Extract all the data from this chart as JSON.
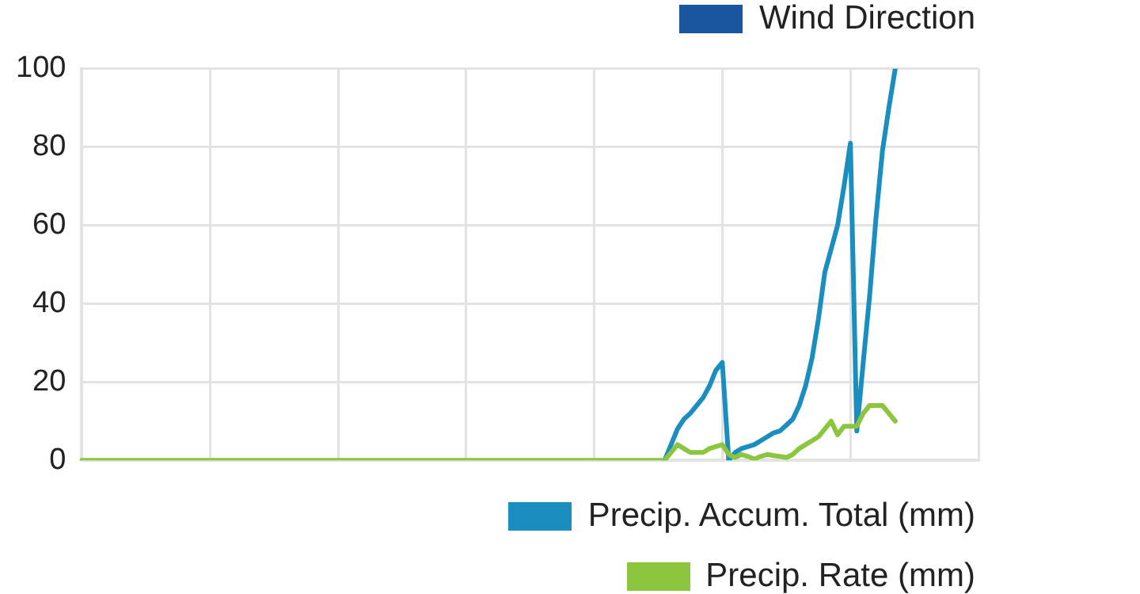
{
  "chart_data": {
    "type": "line",
    "categories": [
      null,
      null,
      null,
      null,
      null,
      null,
      null,
      null,
      null,
      null,
      null,
      null,
      null,
      null,
      null,
      null,
      null,
      null,
      null,
      null,
      null,
      null,
      null,
      null,
      null,
      null,
      null,
      null,
      null,
      null,
      null,
      null,
      null,
      null,
      null,
      null,
      null,
      null,
      null,
      null,
      null,
      null,
      null,
      null,
      null,
      null,
      null,
      null,
      null,
      null,
      null,
      null,
      null,
      null,
      null,
      null,
      null,
      null,
      null,
      null,
      null,
      null,
      null,
      null,
      null,
      null,
      null,
      null,
      null,
      null,
      null,
      null,
      null,
      null,
      null,
      null,
      null,
      null,
      null,
      null,
      null,
      null,
      null,
      null,
      null,
      null,
      null,
      null,
      null,
      null,
      null,
      null,
      null,
      null,
      null,
      null,
      null,
      null,
      null,
      null,
      null,
      null,
      null,
      null,
      null,
      null,
      null,
      null,
      null,
      null,
      null,
      null,
      null,
      null,
      null,
      null,
      null,
      null,
      null,
      null,
      null,
      null,
      null,
      null,
      null,
      null,
      null,
      null,
      null,
      null,
      null,
      null,
      null,
      null,
      null,
      null,
      null,
      null,
      null,
      null,
      null
    ],
    "ylim": [
      0,
      100
    ],
    "yticks": [
      0,
      20,
      40,
      60,
      80,
      100
    ],
    "grid": true,
    "legend": "bottom right",
    "tick_labels": "y",
    "marker": "none",
    "line_style": "solid",
    "series": [
      {
        "name": "Wind Direction",
        "color": "#1a56a0",
        "values": [
          null,
          null,
          null,
          null,
          null,
          null,
          null,
          null,
          null,
          null,
          null,
          null,
          null,
          null,
          null,
          null,
          null,
          null,
          null,
          null,
          null,
          null,
          null,
          null,
          null,
          null,
          null,
          null,
          null,
          null,
          null,
          null,
          null,
          null,
          null,
          null,
          null,
          null,
          null,
          null,
          null,
          null,
          null,
          null,
          null,
          null,
          null,
          null,
          null,
          null,
          null,
          null,
          null,
          null,
          null,
          null,
          null,
          null,
          null,
          null,
          null,
          null,
          null,
          null,
          null,
          null,
          null,
          null,
          null,
          null,
          null,
          null,
          null,
          null,
          null,
          null,
          null,
          null,
          null,
          null,
          null,
          null,
          null,
          null,
          null,
          null,
          null,
          null,
          null,
          null,
          null,
          null,
          null,
          null,
          null,
          null,
          null,
          null,
          null,
          null,
          null,
          null,
          null,
          null,
          null,
          null,
          null,
          null,
          null,
          null,
          null,
          null,
          null,
          null,
          null,
          null,
          null,
          null,
          null,
          null,
          null,
          null,
          null,
          null,
          null,
          null,
          null,
          null,
          null,
          null,
          null,
          null,
          null,
          null,
          null,
          null,
          null,
          null,
          null,
          null,
          null
        ]
      },
      {
        "name": "Precip. Accum. Total (mm)",
        "color": "#1a8fbf",
        "values": [
          null,
          null,
          null,
          null,
          null,
          null,
          null,
          null,
          null,
          null,
          null,
          null,
          null,
          null,
          null,
          null,
          null,
          null,
          null,
          null,
          null,
          null,
          null,
          null,
          null,
          null,
          null,
          null,
          null,
          null,
          null,
          null,
          null,
          null,
          null,
          null,
          null,
          null,
          null,
          null,
          null,
          null,
          null,
          null,
          null,
          null,
          null,
          null,
          null,
          null,
          null,
          null,
          null,
          null,
          null,
          null,
          null,
          null,
          null,
          null,
          null,
          null,
          null,
          null,
          null,
          null,
          null,
          null,
          null,
          null,
          null,
          null,
          null,
          null,
          null,
          null,
          null,
          null,
          null,
          null,
          null,
          null,
          null,
          null,
          null,
          null,
          null,
          null,
          null,
          null,
          null,
          0,
          4,
          8,
          10.5,
          12,
          14,
          16,
          19,
          23,
          25,
          0,
          2,
          3,
          3.5,
          4,
          5,
          6,
          7,
          7.5,
          9,
          10.5,
          14,
          19,
          26,
          36,
          48,
          54,
          60,
          70,
          81,
          7.5,
          25,
          42,
          62,
          79,
          90,
          100,
          null,
          null,
          null,
          null,
          null,
          null,
          null,
          null,
          null,
          null,
          null,
          null,
          null
        ]
      },
      {
        "name": "Precip. Rate (mm)",
        "color": "#8cc63f",
        "values": [
          0,
          0,
          0,
          0,
          0,
          0,
          0,
          0,
          0,
          0,
          0,
          0,
          0,
          0,
          0,
          0,
          0,
          0,
          0,
          0,
          0,
          0,
          0,
          0,
          0,
          0,
          0,
          0,
          0,
          0,
          0,
          0,
          0,
          0,
          0,
          0,
          0,
          0,
          0,
          0,
          0,
          0,
          0,
          0,
          0,
          0,
          0,
          0,
          0,
          0,
          0,
          0,
          0,
          0,
          0,
          0,
          0,
          0,
          0,
          0,
          0,
          0,
          0,
          0,
          0,
          0,
          0,
          0,
          0,
          0,
          0,
          0,
          0,
          0,
          0,
          0,
          0,
          0,
          0,
          0,
          0,
          0,
          0,
          0,
          0,
          0,
          0,
          0,
          0,
          0,
          0,
          0,
          2,
          4,
          3,
          2,
          2,
          2,
          3,
          3.5,
          4,
          1.5,
          0.7,
          1.5,
          1,
          0.3,
          1,
          1.5,
          1.2,
          1,
          0.7,
          1.5,
          3,
          4,
          5,
          6,
          8,
          10,
          6.5,
          8.7,
          8.7,
          8.7,
          12,
          14,
          14,
          14,
          12,
          10,
          null,
          null,
          null,
          null,
          null,
          null,
          null,
          null,
          null,
          null,
          null,
          null,
          null
        ]
      }
    ]
  }
}
